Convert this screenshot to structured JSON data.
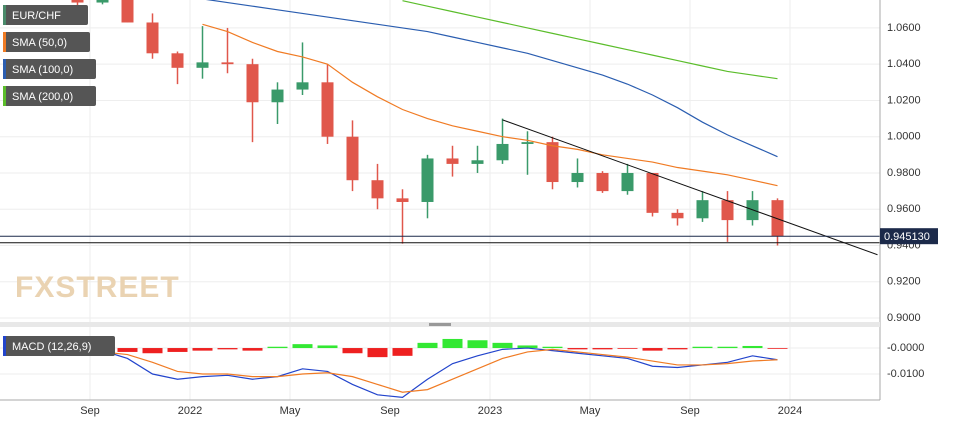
{
  "chart_data": [
    {
      "type": "candlestick",
      "name": "EUR/CHF",
      "x": [
        "2021-08",
        "2021-09",
        "2021-10",
        "2021-11",
        "2021-12",
        "2022-01",
        "2022-02",
        "2022-03",
        "2022-04",
        "2022-05",
        "2022-06",
        "2022-07",
        "2022-08",
        "2022-09",
        "2022-10",
        "2022-11",
        "2022-12",
        "2023-01",
        "2023-02",
        "2023-03",
        "2023-04",
        "2023-05",
        "2023-06",
        "2023-07",
        "2023-08",
        "2023-09",
        "2023-10",
        "2023-11",
        "2023-12"
      ],
      "open": [
        1.077,
        1.074,
        1.08,
        1.063,
        1.046,
        1.038,
        1.041,
        1.04,
        1.019,
        1.026,
        1.03,
        1.0,
        0.976,
        0.966,
        0.964,
        0.988,
        0.985,
        0.987,
        0.996,
        0.997,
        0.975,
        0.98,
        0.97,
        0.98,
        0.958,
        0.955,
        0.965,
        0.954,
        0.965
      ],
      "high": [
        1.082,
        1.087,
        1.081,
        1.068,
        1.047,
        1.061,
        1.06,
        1.043,
        1.03,
        1.052,
        1.04,
        1.009,
        0.985,
        0.971,
        0.99,
        0.995,
        0.995,
        1.01,
        1.003,
        1.0,
        0.988,
        0.981,
        0.985,
        0.98,
        0.96,
        0.97,
        0.97,
        0.97,
        0.966
      ],
      "low": [
        1.071,
        1.073,
        1.063,
        1.043,
        1.029,
        1.032,
        1.035,
        0.997,
        1.007,
        1.023,
        0.996,
        0.97,
        0.96,
        0.941,
        0.955,
        0.978,
        0.98,
        0.985,
        0.979,
        0.971,
        0.972,
        0.969,
        0.968,
        0.956,
        0.951,
        0.953,
        0.942,
        0.951,
        0.94
      ],
      "close": [
        1.074,
        1.08,
        1.063,
        1.046,
        1.038,
        1.041,
        1.04,
        1.019,
        1.026,
        1.03,
        1.0,
        0.976,
        0.966,
        0.964,
        0.988,
        0.985,
        0.987,
        0.996,
        0.997,
        0.975,
        0.98,
        0.97,
        0.98,
        0.958,
        0.955,
        0.965,
        0.954,
        0.965,
        0.9451
      ],
      "up_color": "#3a9a6a",
      "down_color": "#e0574b",
      "series": [
        {
          "name": "SMA (50,0)",
          "color": "#f07b24",
          "values": [
            null,
            null,
            null,
            null,
            null,
            1.062,
            1.058,
            1.052,
            1.047,
            1.044,
            1.04,
            1.03,
            1.022,
            1.015,
            1.01,
            1.006,
            1.003,
            1.0,
            0.998,
            0.995,
            0.993,
            0.99,
            0.988,
            0.986,
            0.983,
            0.981,
            0.979,
            0.976,
            0.973
          ]
        },
        {
          "name": "SMA (100,0)",
          "color": "#2a5db0",
          "values": [
            null,
            null,
            null,
            null,
            null,
            1.076,
            1.074,
            1.072,
            1.07,
            1.068,
            1.066,
            1.064,
            1.062,
            1.06,
            1.058,
            1.055,
            1.052,
            1.049,
            1.046,
            1.042,
            1.038,
            1.034,
            1.029,
            1.023,
            1.016,
            1.008,
            1.001,
            0.995,
            0.989
          ]
        },
        {
          "name": "SMA (200,0)",
          "color": "#5bbd2b",
          "values": [
            null,
            null,
            null,
            null,
            null,
            null,
            null,
            null,
            null,
            null,
            null,
            null,
            null,
            1.075,
            1.072,
            1.069,
            1.066,
            1.063,
            1.06,
            1.057,
            1.054,
            1.051,
            1.048,
            1.045,
            1.042,
            1.039,
            1.036,
            1.034,
            1.032
          ]
        }
      ],
      "last_price": {
        "value": 0.94513,
        "label": "0.945130"
      },
      "support_level": 0.9415,
      "trendline": {
        "x": [
          "2023-01",
          "2024-04"
        ],
        "values": [
          1.0093,
          0.9349
        ]
      },
      "xlim": [
        "2021-05",
        "2024-05"
      ],
      "ylim": [
        0.8978,
        1.0754
      ],
      "yticks": [
        {
          "value": 0.9,
          "label": "0.9000"
        },
        {
          "value": 0.92,
          "label": "0.9200"
        },
        {
          "value": 0.94,
          "label": "0.9400"
        },
        {
          "value": 0.96,
          "label": "0.9600"
        },
        {
          "value": 0.98,
          "label": "0.9800"
        },
        {
          "value": 1.0,
          "label": "1.0000"
        },
        {
          "value": 1.02,
          "label": "1.0200"
        },
        {
          "value": 1.04,
          "label": "1.0400"
        },
        {
          "value": 1.06,
          "label": "1.0600"
        }
      ],
      "watermark": "FXSTREET"
    },
    {
      "type": "macd",
      "name": "MACD (12,26,9)",
      "x": [
        "2021-08",
        "2021-09",
        "2021-10",
        "2021-11",
        "2021-12",
        "2022-01",
        "2022-02",
        "2022-03",
        "2022-04",
        "2022-05",
        "2022-06",
        "2022-07",
        "2022-08",
        "2022-09",
        "2022-10",
        "2022-11",
        "2022-12",
        "2023-01",
        "2023-02",
        "2023-03",
        "2023-04",
        "2023-05",
        "2023-06",
        "2023-07",
        "2023-08",
        "2023-09",
        "2023-10",
        "2023-11",
        "2023-12"
      ],
      "histogram": [
        0.0,
        -0.0005,
        -0.0015,
        -0.002,
        -0.0015,
        -0.001,
        -0.0005,
        -0.001,
        0.0005,
        0.0015,
        0.001,
        -0.002,
        -0.0035,
        -0.003,
        0.002,
        0.0035,
        0.003,
        0.002,
        0.001,
        0.0005,
        -0.0005,
        -0.0005,
        -0.0003,
        -0.001,
        -0.0005,
        0.0005,
        0.0005,
        0.0008,
        -0.0003
      ],
      "up_color": "#33e833",
      "down_color": "#ee2020",
      "series": [
        {
          "color": "#2244cc",
          "values": [
            -0.002,
            -0.001,
            -0.004,
            -0.01,
            -0.012,
            -0.011,
            -0.0105,
            -0.012,
            -0.011,
            -0.008,
            -0.009,
            -0.014,
            -0.018,
            -0.019,
            -0.012,
            -0.006,
            -0.003,
            -0.0005,
            0.0,
            -0.001,
            -0.002,
            -0.003,
            -0.004,
            -0.007,
            -0.0075,
            -0.0065,
            -0.0055,
            -0.003,
            -0.0045
          ]
        },
        {
          "color": "#f07b24",
          "values": [
            -0.002,
            -0.0015,
            -0.0025,
            -0.0055,
            -0.009,
            -0.01,
            -0.01,
            -0.011,
            -0.011,
            -0.01,
            -0.0095,
            -0.011,
            -0.014,
            -0.017,
            -0.016,
            -0.012,
            -0.008,
            -0.004,
            -0.0015,
            -0.0005,
            -0.0015,
            -0.0025,
            -0.0035,
            -0.005,
            -0.0065,
            -0.0065,
            -0.006,
            -0.005,
            -0.0045
          ]
        }
      ],
      "xlim": [
        "2021-05",
        "2024-05"
      ],
      "ylim": [
        -0.02,
        0.0081
      ],
      "yticks": [
        {
          "value": 0,
          "label": "-0.0000"
        },
        {
          "value": -0.01,
          "label": "-0.0100"
        }
      ],
      "xticks": [
        {
          "value": "2021-09",
          "label": "Sep"
        },
        {
          "value": "2022-01",
          "label": "2022"
        },
        {
          "value": "2022-05",
          "label": "May"
        },
        {
          "value": "2022-09",
          "label": "Sep"
        },
        {
          "value": "2023-01",
          "label": "2023"
        },
        {
          "value": "2023-05",
          "label": "May"
        },
        {
          "value": "2023-09",
          "label": "Sep"
        },
        {
          "value": "2024-01",
          "label": "2024"
        }
      ]
    }
  ]
}
